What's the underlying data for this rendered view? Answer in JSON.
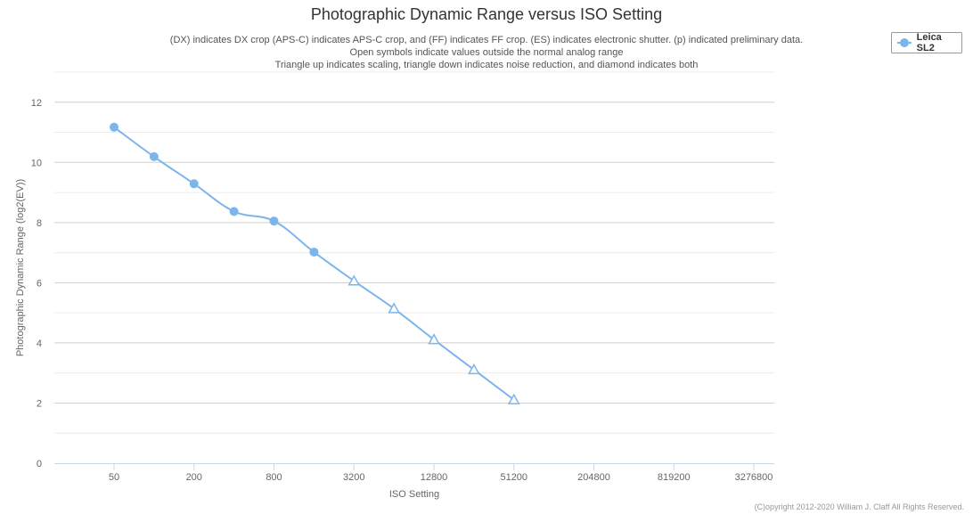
{
  "chart_data": {
    "type": "line",
    "title": "Photographic Dynamic Range versus ISO Setting",
    "subtitle_lines": [
      "(DX) indicates DX crop (APS-C) indicates APS-C crop, and (FF) indicates FF crop. (ES) indicates electronic shutter. (p) indicated preliminary data.",
      "Open symbols indicate values outside the normal analog range",
      "Triangle up indicates scaling, triangle down indicates noise reduction, and diamond indicates both"
    ],
    "xlabel": "ISO Setting",
    "ylabel": "Photographic Dynamic Range (log2(EV))",
    "x_ticks": [
      "50",
      "200",
      "800",
      "3200",
      "12800",
      "51200",
      "204800",
      "819200",
      "3276800"
    ],
    "y_ticks": [
      "0",
      "2",
      "4",
      "6",
      "8",
      "10",
      "12"
    ],
    "ylim": [
      0,
      12
    ],
    "x_scale": "log2",
    "grid": true,
    "legend_position": "top-right",
    "series": [
      {
        "name": "Leica SL2",
        "color": "#7cb5ec",
        "points": [
          {
            "iso": 50,
            "dr": 11.17,
            "marker": "circle"
          },
          {
            "iso": 100,
            "dr": 10.19,
            "marker": "circle"
          },
          {
            "iso": 200,
            "dr": 9.29,
            "marker": "circle"
          },
          {
            "iso": 400,
            "dr": 8.37,
            "marker": "circle"
          },
          {
            "iso": 800,
            "dr": 8.05,
            "marker": "circle"
          },
          {
            "iso": 1600,
            "dr": 7.02,
            "marker": "circle"
          },
          {
            "iso": 3200,
            "dr": 6.06,
            "marker": "triangle-open"
          },
          {
            "iso": 6400,
            "dr": 5.14,
            "marker": "triangle-open"
          },
          {
            "iso": 12800,
            "dr": 4.11,
            "marker": "triangle-open"
          },
          {
            "iso": 25600,
            "dr": 3.11,
            "marker": "triangle-open"
          },
          {
            "iso": 51200,
            "dr": 2.11,
            "marker": "triangle-open"
          }
        ]
      }
    ]
  },
  "credits": "(C)opyright 2012-2020 William J. Claff All Rights Reserved."
}
